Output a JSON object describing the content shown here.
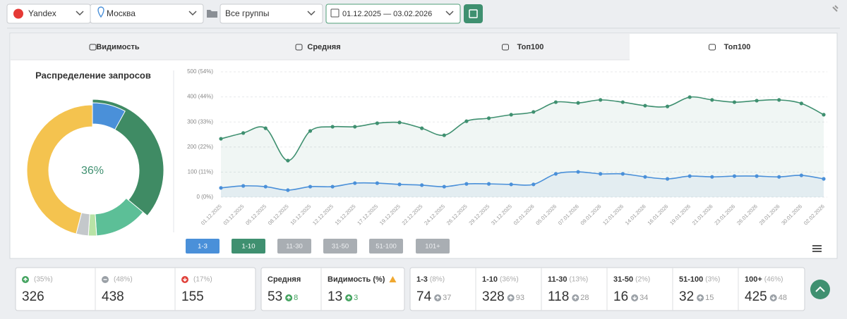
{
  "toolbar": {
    "search_engine": "Yandex",
    "region": "Москва",
    "group": "Все группы",
    "date_range": "01.12.2025 — 03.02.2026"
  },
  "tabs": [
    {
      "label": "Видимость",
      "active": false
    },
    {
      "label": "Средняя",
      "active": false
    },
    {
      "label": "Топ100",
      "active": false
    },
    {
      "label": "Топ100",
      "active": true
    }
  ],
  "donut": {
    "title": "Распределение запросов",
    "center_label": "36%"
  },
  "chart": {
    "type": "line",
    "categories": [
      "01.12.2025",
      "03.12.2025",
      "05.12.2025",
      "08.12.2025",
      "10.12.2025",
      "12.12.2025",
      "15.12.2025",
      "17.12.2025",
      "19.12.2025",
      "22.12.2025",
      "24.12.2025",
      "26.12.2025",
      "29.12.2025",
      "31.12.2025",
      "02.01.2026",
      "05.01.2026",
      "07.01.2026",
      "09.01.2026",
      "12.01.2026",
      "14.01.2026",
      "16.01.2026",
      "19.01.2026",
      "21.01.2026",
      "23.01.2026",
      "26.01.2026",
      "28.01.2026",
      "30.01.2026",
      "02.02.2026"
    ],
    "ylim": [
      0,
      500
    ],
    "yticks": [
      {
        "value": 0,
        "label": "0 (0%)"
      },
      {
        "value": 100,
        "label": "100 (11%)"
      },
      {
        "value": 200,
        "label": "200 (22%)"
      },
      {
        "value": 300,
        "label": "300 (33%)"
      },
      {
        "value": 400,
        "label": "400 (44%)"
      },
      {
        "value": 500,
        "label": "500 (54%)"
      }
    ],
    "grid": true,
    "series": [
      {
        "name": "1-3",
        "color": "#4a90d9",
        "active": true,
        "values": [
          37,
          45,
          42,
          28,
          42,
          42,
          56,
          56,
          51,
          48,
          42,
          53,
          53,
          51,
          51,
          93,
          101,
          93,
          93,
          81,
          73,
          84,
          81,
          84,
          84,
          81,
          87,
          73
        ]
      },
      {
        "name": "1-10",
        "color": "#3f9070",
        "active": true,
        "values": [
          233,
          256,
          275,
          146,
          264,
          281,
          281,
          295,
          298,
          275,
          247,
          303,
          315,
          329,
          340,
          379,
          376,
          388,
          379,
          365,
          362,
          399,
          388,
          379,
          385,
          388,
          374,
          329
        ]
      },
      {
        "name": "11-30",
        "color": "#a9aeb3",
        "active": false
      },
      {
        "name": "31-50",
        "color": "#a9aeb3",
        "active": false
      },
      {
        "name": "51-100",
        "color": "#a9aeb3",
        "active": false
      },
      {
        "name": "101+",
        "color": "#a9aeb3",
        "active": false
      }
    ]
  },
  "stats": {
    "dynamics": [
      {
        "direction": "up",
        "share_label": "(35%)",
        "value": 326
      },
      {
        "direction": "same",
        "share_label": "(48%)",
        "value": 438
      },
      {
        "direction": "down",
        "share_label": "(17%)",
        "value": 155
      }
    ],
    "averages": [
      {
        "label": "Средняя",
        "value": 53,
        "change": 8,
        "direction": "up"
      },
      {
        "label": "Видимость (%)",
        "value": 13,
        "change": 3,
        "direction": "up",
        "warning": true
      }
    ],
    "positions": [
      {
        "label": "1-3",
        "share": 8,
        "share_label": "(8%)",
        "value": 74,
        "change": 37,
        "direction": "up",
        "color": "#4a90d9"
      },
      {
        "label": "1-10",
        "share": 36,
        "share_label": "(36%)",
        "value": 328,
        "change": 93,
        "direction": "up",
        "color": "#3f8b64"
      },
      {
        "label": "11-30",
        "share": 13,
        "share_label": "(13%)",
        "value": 118,
        "change": 28,
        "direction": "up",
        "color": "#5cbf97"
      },
      {
        "label": "31-50",
        "share": 2,
        "share_label": "(2%)",
        "value": 16,
        "change": 34,
        "direction": "down",
        "color": "#b9e3a6"
      },
      {
        "label": "51-100",
        "share": 3,
        "share_label": "(3%)",
        "value": 32,
        "change": 15,
        "direction": "up",
        "color": "#c4c8cb"
      },
      {
        "label": "100+",
        "share": 46,
        "share_label": "(46%)",
        "value": 425,
        "change": 48,
        "direction": "down",
        "color": "#f4c34f"
      }
    ]
  }
}
